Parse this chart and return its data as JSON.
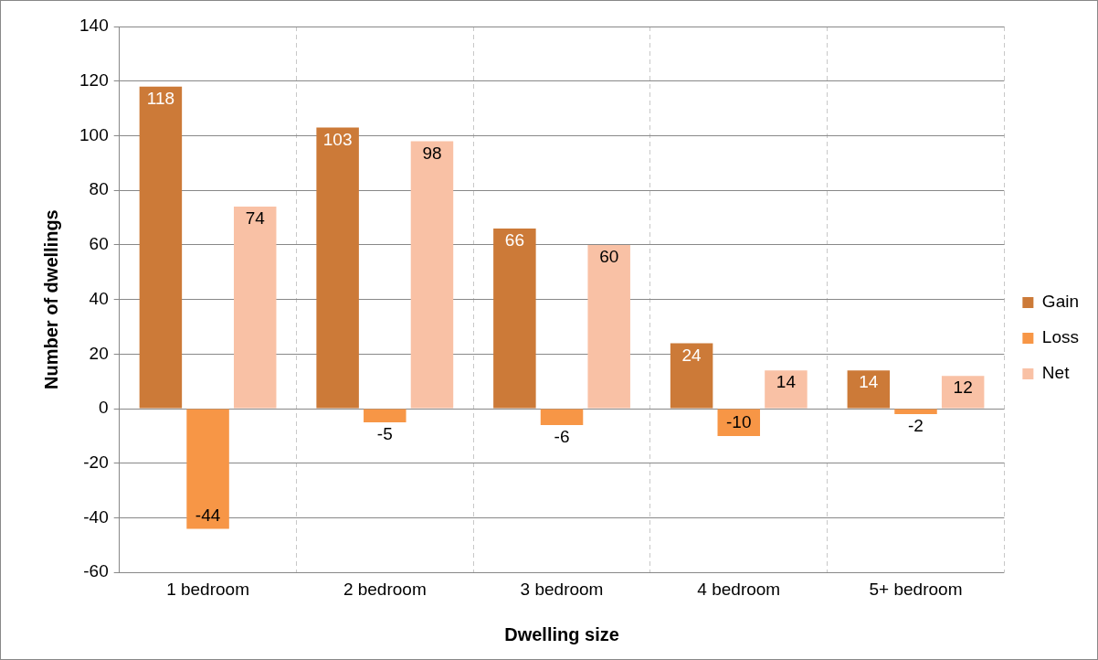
{
  "chart_data": {
    "type": "bar",
    "xlabel": "Dwelling size",
    "ylabel": "Number of dwellings",
    "categories": [
      "1 bedroom",
      "2 bedroom",
      "3 bedroom",
      "4 bedroom",
      "5+ bedroom"
    ],
    "series": [
      {
        "name": "Gain",
        "color": "#cc7a38",
        "values": [
          118,
          103,
          66,
          24,
          14
        ]
      },
      {
        "name": "Loss",
        "color": "#f79646",
        "values": [
          -44,
          -5,
          -6,
          -10,
          -2
        ]
      },
      {
        "name": "Net",
        "color": "#f9c1a5",
        "values": [
          74,
          98,
          60,
          14,
          12
        ]
      }
    ],
    "ylim": [
      -60,
      140
    ],
    "yticks": [
      -60,
      -40,
      -20,
      0,
      20,
      40,
      60,
      80,
      100,
      120,
      140
    ],
    "grid": true,
    "legend": "right",
    "data_labels": true
  }
}
